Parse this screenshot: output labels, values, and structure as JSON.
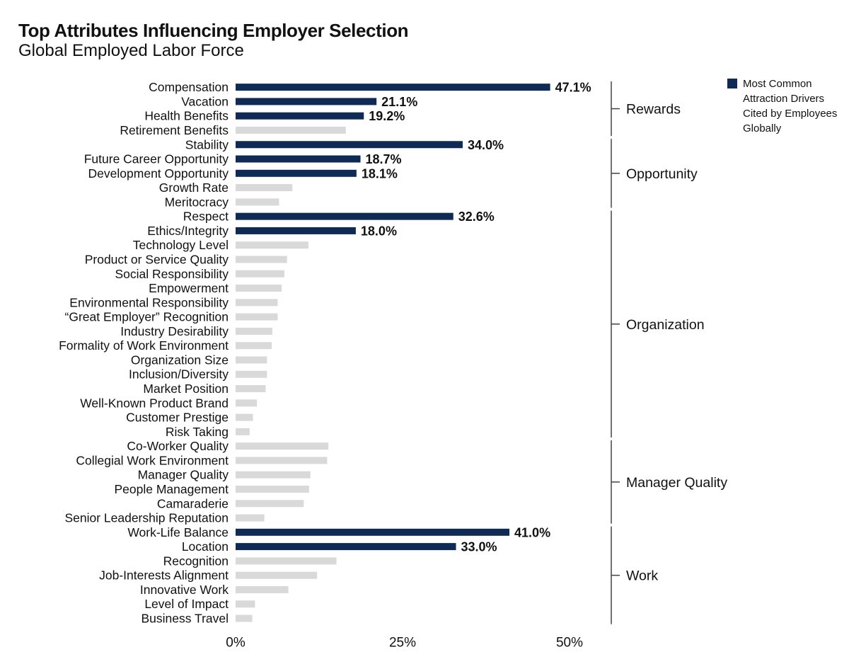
{
  "colors": {
    "highlight": "#0e2a55",
    "other": "#d9d9d9",
    "bracket": "#444444"
  },
  "chart_data": {
    "type": "bar",
    "orientation": "horizontal",
    "title": "Top Attributes Influencing Employer Selection",
    "subtitle": "Global Employed Labor Force",
    "xlim": [
      0,
      50
    ],
    "ticks": [
      {
        "value": 0,
        "label": "0%"
      },
      {
        "value": 25,
        "label": "25%"
      },
      {
        "value": 50,
        "label": "50%"
      }
    ],
    "legend": {
      "label": "Most Common Attraction Drivers Cited by Employees Globally",
      "position": "top-right"
    },
    "categories": [
      {
        "label": "Compensation",
        "value": 47.1,
        "highlight": true,
        "value_label": "47.1%"
      },
      {
        "label": "Vacation",
        "value": 21.1,
        "highlight": true,
        "value_label": "21.1%"
      },
      {
        "label": "Health Benefits",
        "value": 19.2,
        "highlight": true,
        "value_label": "19.2%"
      },
      {
        "label": "Retirement Benefits",
        "value": 16.5,
        "highlight": false
      },
      {
        "label": "Stability",
        "value": 34.0,
        "highlight": true,
        "value_label": "34.0%"
      },
      {
        "label": "Future Career Opportunity",
        "value": 18.7,
        "highlight": true,
        "value_label": "18.7%"
      },
      {
        "label": "Development Opportunity",
        "value": 18.1,
        "highlight": true,
        "value_label": "18.1%"
      },
      {
        "label": "Growth Rate",
        "value": 8.5,
        "highlight": false
      },
      {
        "label": "Meritocracy",
        "value": 6.5,
        "highlight": false
      },
      {
        "label": "Respect",
        "value": 32.6,
        "highlight": true,
        "value_label": "32.6%"
      },
      {
        "label": "Ethics/Integrity",
        "value": 18.0,
        "highlight": true,
        "value_label": "18.0%"
      },
      {
        "label": "Technology Level",
        "value": 10.9,
        "highlight": false
      },
      {
        "label": "Product or Service Quality",
        "value": 7.7,
        "highlight": false
      },
      {
        "label": "Social Responsibility",
        "value": 7.3,
        "highlight": false
      },
      {
        "label": "Empowerment",
        "value": 6.9,
        "highlight": false
      },
      {
        "label": "Environmental Responsibility",
        "value": 6.3,
        "highlight": false
      },
      {
        "label": "“Great Employer” Recognition",
        "value": 6.3,
        "highlight": false
      },
      {
        "label": "Industry Desirability",
        "value": 5.5,
        "highlight": false
      },
      {
        "label": "Formality of Work Environment",
        "value": 5.4,
        "highlight": false
      },
      {
        "label": "Organization Size",
        "value": 4.7,
        "highlight": false
      },
      {
        "label": "Inclusion/Diversity",
        "value": 4.7,
        "highlight": false
      },
      {
        "label": "Market Position",
        "value": 4.5,
        "highlight": false
      },
      {
        "label": "Well-Known Product Brand",
        "value": 3.2,
        "highlight": false
      },
      {
        "label": "Customer Prestige",
        "value": 2.6,
        "highlight": false
      },
      {
        "label": "Risk Taking",
        "value": 2.1,
        "highlight": false
      },
      {
        "label": "Co-Worker Quality",
        "value": 13.9,
        "highlight": false
      },
      {
        "label": "Collegial Work Environment",
        "value": 13.7,
        "highlight": false
      },
      {
        "label": "Manager Quality",
        "value": 11.2,
        "highlight": false
      },
      {
        "label": "People Management",
        "value": 11.0,
        "highlight": false
      },
      {
        "label": "Camaraderie",
        "value": 10.2,
        "highlight": false
      },
      {
        "label": "Senior Leadership Reputation",
        "value": 4.3,
        "highlight": false
      },
      {
        "label": "Work-Life Balance",
        "value": 41.0,
        "highlight": true,
        "value_label": "41.0%"
      },
      {
        "label": "Location",
        "value": 33.0,
        "highlight": true,
        "value_label": "33.0%"
      },
      {
        "label": "Recognition",
        "value": 15.1,
        "highlight": false
      },
      {
        "label": "Job-Interests Alignment",
        "value": 12.2,
        "highlight": false
      },
      {
        "label": "Innovative Work",
        "value": 7.9,
        "highlight": false
      },
      {
        "label": "Level of Impact",
        "value": 2.9,
        "highlight": false
      },
      {
        "label": "Business Travel",
        "value": 2.5,
        "highlight": false
      }
    ],
    "groups": [
      {
        "label": "Rewards",
        "first": 0,
        "last": 3
      },
      {
        "label": "Opportunity",
        "first": 4,
        "last": 8
      },
      {
        "label": "Organization",
        "first": 9,
        "last": 24
      },
      {
        "label": "Manager Quality",
        "first": 25,
        "last": 30
      },
      {
        "label": "Work",
        "first": 31,
        "last": 37
      }
    ]
  }
}
